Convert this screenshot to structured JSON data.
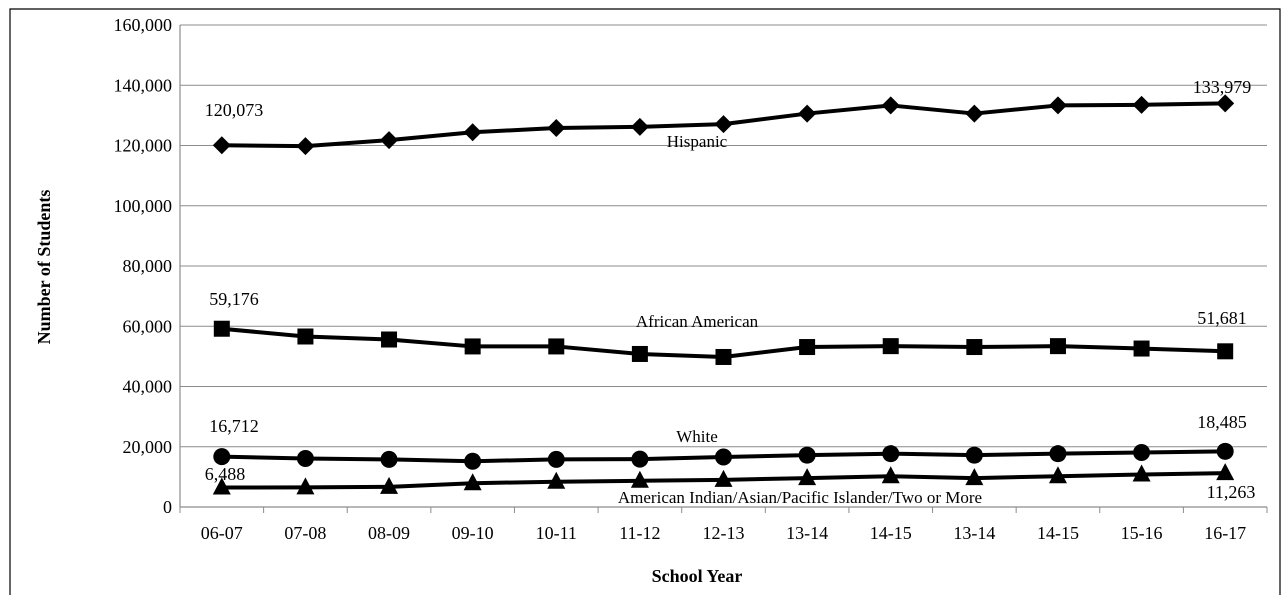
{
  "chart_data": {
    "type": "line",
    "title": "",
    "xlabel": "School Year",
    "ylabel": "Number of Students",
    "ylim": [
      0,
      160000
    ],
    "ytick_step": 20000,
    "y_tick_labels": [
      "0",
      "20,000",
      "40,000",
      "60,000",
      "80,000",
      "100,000",
      "120,000",
      "140,000",
      "160,000"
    ],
    "grid": "horizontal",
    "legend": "none (series labelled inline)",
    "categories": [
      "06-07",
      "07-08",
      "08-09",
      "09-10",
      "10-11",
      "11-12",
      "12-13",
      "13-14",
      "14-15",
      "13-14",
      "14-15",
      "15-16",
      "16-17"
    ],
    "series": [
      {
        "name": "Hispanic",
        "marker": "diamond",
        "values": [
          120073,
          119800,
          121800,
          124400,
          125800,
          126200,
          127100,
          130600,
          133300,
          130600,
          133300,
          133500,
          133979
        ],
        "first_label": "120,073",
        "last_label": "133,979"
      },
      {
        "name": "African American",
        "marker": "square",
        "values": [
          59176,
          56600,
          55600,
          53300,
          53300,
          50800,
          49800,
          53100,
          53400,
          53100,
          53400,
          52600,
          51681
        ],
        "first_label": "59,176",
        "last_label": "51,681"
      },
      {
        "name": "White",
        "marker": "circle",
        "values": [
          16712,
          16100,
          15800,
          15200,
          15800,
          15900,
          16600,
          17200,
          17700,
          17200,
          17700,
          18100,
          18485
        ],
        "first_label": "16,712",
        "last_label": "18,485"
      },
      {
        "name": "American Indian/Asian/Pacific Islander/Two or More",
        "marker": "triangle",
        "values": [
          6488,
          6500,
          6700,
          7900,
          8400,
          8700,
          9000,
          9600,
          10200,
          9600,
          10200,
          10800,
          11263
        ],
        "first_label": "6,488",
        "last_label": "11,263"
      }
    ],
    "colors": {
      "line": "#000000",
      "grid": "#8c8c8c",
      "frame": "#000000"
    }
  }
}
